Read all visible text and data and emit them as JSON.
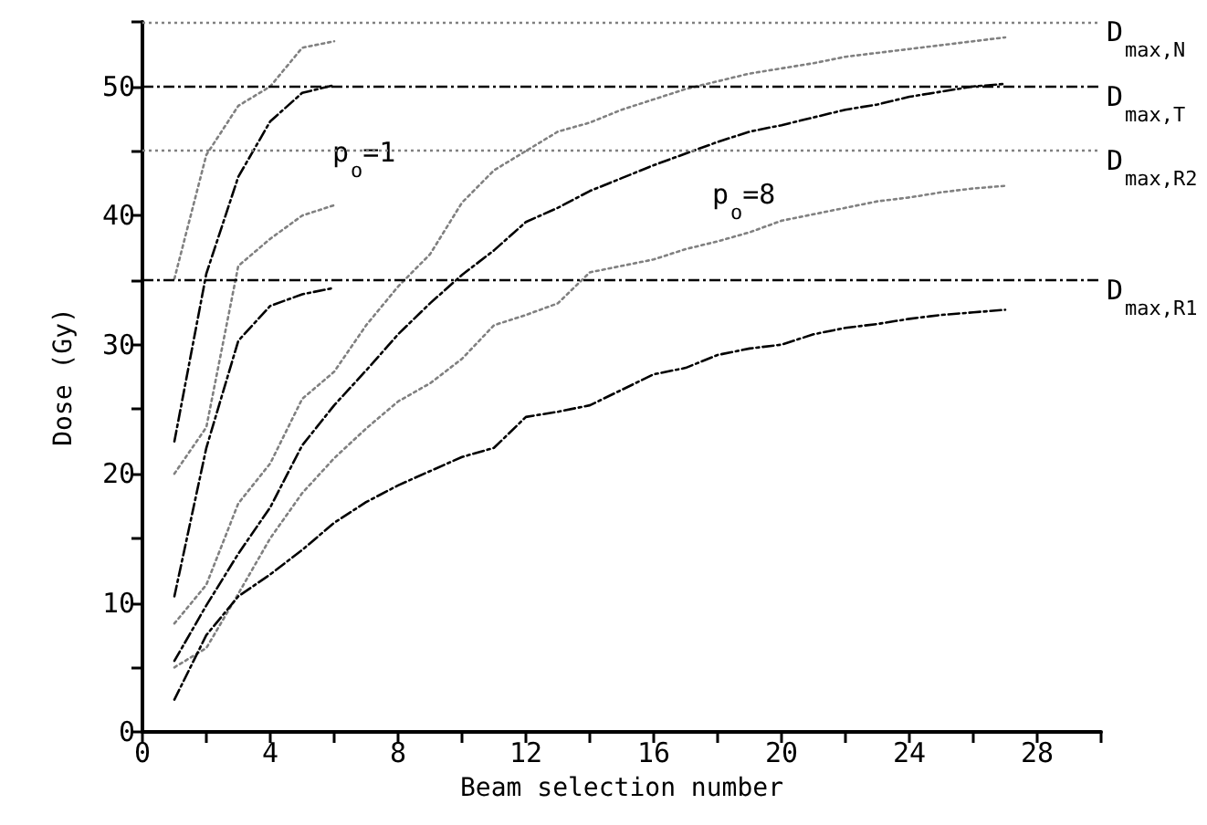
{
  "chart_data": {
    "type": "line",
    "xlabel": "Beam selection number",
    "ylabel": "Dose (Gy)",
    "xlim": [
      0,
      30
    ],
    "xticks": [
      0,
      {
        "value": 2,
        "label": null
      },
      4,
      {
        "value": 6,
        "label": null
      },
      8,
      {
        "value": 10,
        "label": null
      },
      12,
      {
        "value": 14,
        "label": null
      },
      16,
      {
        "value": 18,
        "label": null
      },
      20,
      {
        "value": 22,
        "label": null
      },
      24,
      {
        "value": 26,
        "label": null
      },
      28,
      {
        "value": 30,
        "label": null
      }
    ],
    "ylim": [
      0,
      55
    ],
    "yticks": [
      0,
      {
        "value": 5,
        "label": null
      },
      10,
      {
        "value": 15,
        "label": null
      },
      20,
      {
        "value": 25,
        "label": null
      },
      30,
      {
        "value": 35,
        "label": null
      },
      40,
      {
        "value": 45,
        "label": null
      },
      50,
      {
        "value": 55,
        "label": null
      }
    ],
    "grid": false,
    "marker": "none",
    "series": [
      {
        "color": "#808080",
        "line_style": "dotted",
        "x": [
          1,
          2,
          3,
          4,
          5,
          6
        ],
        "values": [
          35.1,
          44.7,
          48.5,
          50.0,
          53.0,
          53.5
        ]
      },
      {
        "color": "#000000",
        "line_style": "dashed",
        "x": [
          1,
          2,
          3,
          4,
          5,
          6
        ],
        "values": [
          22.5,
          35.5,
          43.0,
          47.3,
          49.5,
          50.1
        ]
      },
      {
        "color": "#808080",
        "line_style": "dotted",
        "x": [
          1,
          2,
          3,
          4,
          5,
          6
        ],
        "values": [
          20.0,
          23.6,
          36.1,
          38.2,
          40.0,
          40.8
        ]
      },
      {
        "color": "#000000",
        "line_style": "dashed",
        "x": [
          1,
          2,
          3,
          4,
          5,
          6
        ],
        "values": [
          10.5,
          22.0,
          30.3,
          33.0,
          33.9,
          34.4
        ]
      },
      {
        "color": "#808080",
        "line_style": "dotted",
        "x": [
          1,
          2,
          3,
          4,
          5,
          6,
          7,
          8,
          9,
          10,
          11,
          12,
          13,
          14,
          15,
          16,
          17,
          18,
          19,
          20,
          21,
          22,
          23,
          24,
          25,
          26,
          27
        ],
        "values": [
          8.4,
          11.4,
          17.7,
          20.8,
          25.8,
          27.9,
          31.5,
          34.5,
          37.0,
          41.0,
          43.5,
          45.0,
          46.5,
          47.2,
          48.2,
          49.0,
          49.8,
          50.4,
          51.0,
          51.4,
          51.8,
          52.3,
          52.6,
          52.9,
          53.2,
          53.5,
          53.8
        ]
      },
      {
        "color": "#000000",
        "line_style": "dashed",
        "x": [
          1,
          2,
          3,
          4,
          5,
          6,
          7,
          8,
          9,
          10,
          11,
          12,
          13,
          14,
          15,
          16,
          17,
          18,
          19,
          20,
          21,
          22,
          23,
          24,
          25,
          26,
          27
        ],
        "values": [
          5.5,
          9.8,
          13.8,
          17.4,
          22.2,
          25.3,
          28.0,
          30.8,
          33.2,
          35.4,
          37.3,
          39.5,
          40.6,
          41.9,
          42.9,
          43.9,
          44.8,
          45.7,
          46.5,
          47.0,
          47.6,
          48.2,
          48.6,
          49.2,
          49.6,
          50.0,
          50.2
        ]
      },
      {
        "color": "#808080",
        "line_style": "dotted",
        "x": [
          1,
          2,
          3,
          4,
          5,
          6,
          7,
          8,
          9,
          10,
          11,
          12,
          13,
          14,
          15,
          16,
          17,
          18,
          19,
          20,
          21,
          22,
          23,
          24,
          25,
          26,
          27
        ],
        "values": [
          5.0,
          6.5,
          10.7,
          15.0,
          18.5,
          21.2,
          23.5,
          25.6,
          27.0,
          28.9,
          31.5,
          32.3,
          33.2,
          35.6,
          36.1,
          36.6,
          37.4,
          38.0,
          38.7,
          39.6,
          40.1,
          40.6,
          41.1,
          41.4,
          41.8,
          42.1,
          42.3
        ]
      },
      {
        "color": "#000000",
        "line_style": "dashed",
        "x": [
          1,
          2,
          3,
          4,
          5,
          6,
          7,
          8,
          9,
          10,
          11,
          12,
          13,
          14,
          15,
          16,
          17,
          18,
          19,
          20,
          21,
          22,
          23,
          24,
          25,
          26,
          27
        ],
        "values": [
          2.5,
          7.5,
          10.5,
          12.2,
          14.1,
          16.2,
          17.8,
          19.1,
          20.2,
          21.3,
          22.0,
          24.4,
          24.8,
          25.3,
          26.5,
          27.7,
          28.2,
          29.2,
          29.7,
          30.0,
          30.8,
          31.3,
          31.6,
          32.0,
          32.3,
          32.5,
          32.7
        ]
      }
    ],
    "ref_lines": [
      {
        "axis": "y",
        "value": 55,
        "label": "D$_{max,N}$",
        "color": "#808080",
        "line_style": "dotted"
      },
      {
        "axis": "y",
        "value": 50,
        "label": "D$_{max,T}$",
        "color": "#000000",
        "line_style": "dashed"
      },
      {
        "axis": "y",
        "value": 45,
        "label": "D$_{max,R2}$",
        "color": "#808080",
        "line_style": "dotted"
      },
      {
        "axis": "y",
        "value": 35,
        "label": "D$_{max,R1}$",
        "color": "#000000",
        "line_style": "dashed"
      }
    ],
    "annotations": [
      "p$_{o}$=1",
      "p$_{o}$=8"
    ]
  }
}
